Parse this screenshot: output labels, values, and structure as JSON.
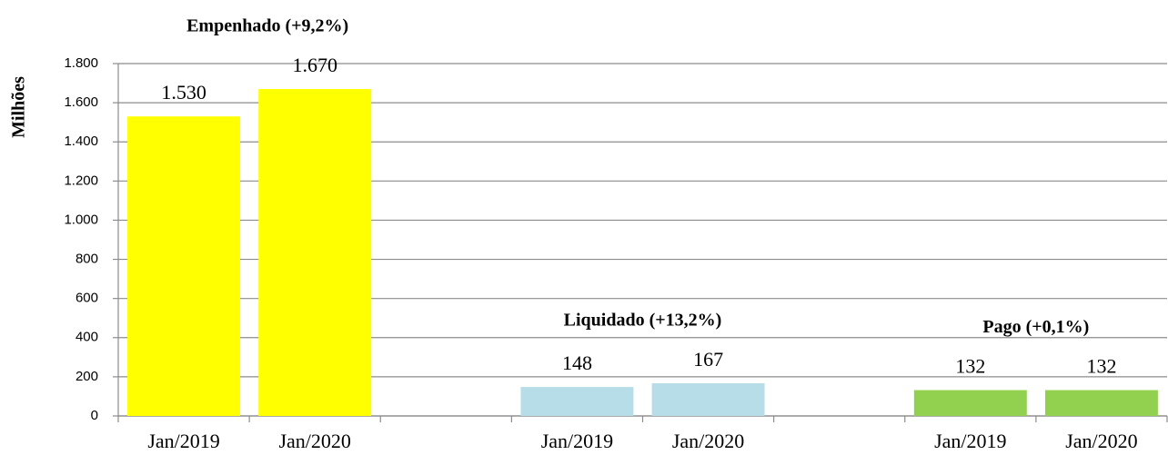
{
  "chart_data": {
    "type": "bar",
    "ylabel": "Milhões",
    "ylim": [
      0,
      1800
    ],
    "yticks": [
      0,
      200,
      400,
      600,
      800,
      {
        "value": 1000,
        "label": "1.000"
      },
      {
        "value": 1200,
        "label": "1.200"
      },
      {
        "value": 1400,
        "label": "1.400"
      },
      {
        "value": 1600,
        "label": "1.600"
      },
      {
        "value": 1800,
        "label": "1.800"
      }
    ],
    "grid": true,
    "groups": [
      {
        "name": "Empenhado (+9,2%)",
        "color": "#ffff00",
        "categories": [
          "Jan/2019",
          "Jan/2020"
        ],
        "values": [
          1530,
          1670
        ],
        "value_labels": [
          "1.530",
          "1.670"
        ]
      },
      {
        "name": "Liquidado (+13,2%)",
        "color": "#b7dde8",
        "categories": [
          "Jan/2019",
          "Jan/2020"
        ],
        "values": [
          148,
          167
        ],
        "value_labels": [
          "148",
          "167"
        ]
      },
      {
        "name": "Pago (+0,1%)",
        "color": "#92d050",
        "categories": [
          "Jan/2019",
          "Jan/2020"
        ],
        "values": [
          132,
          132
        ],
        "value_labels": [
          "132",
          "132"
        ]
      }
    ]
  }
}
